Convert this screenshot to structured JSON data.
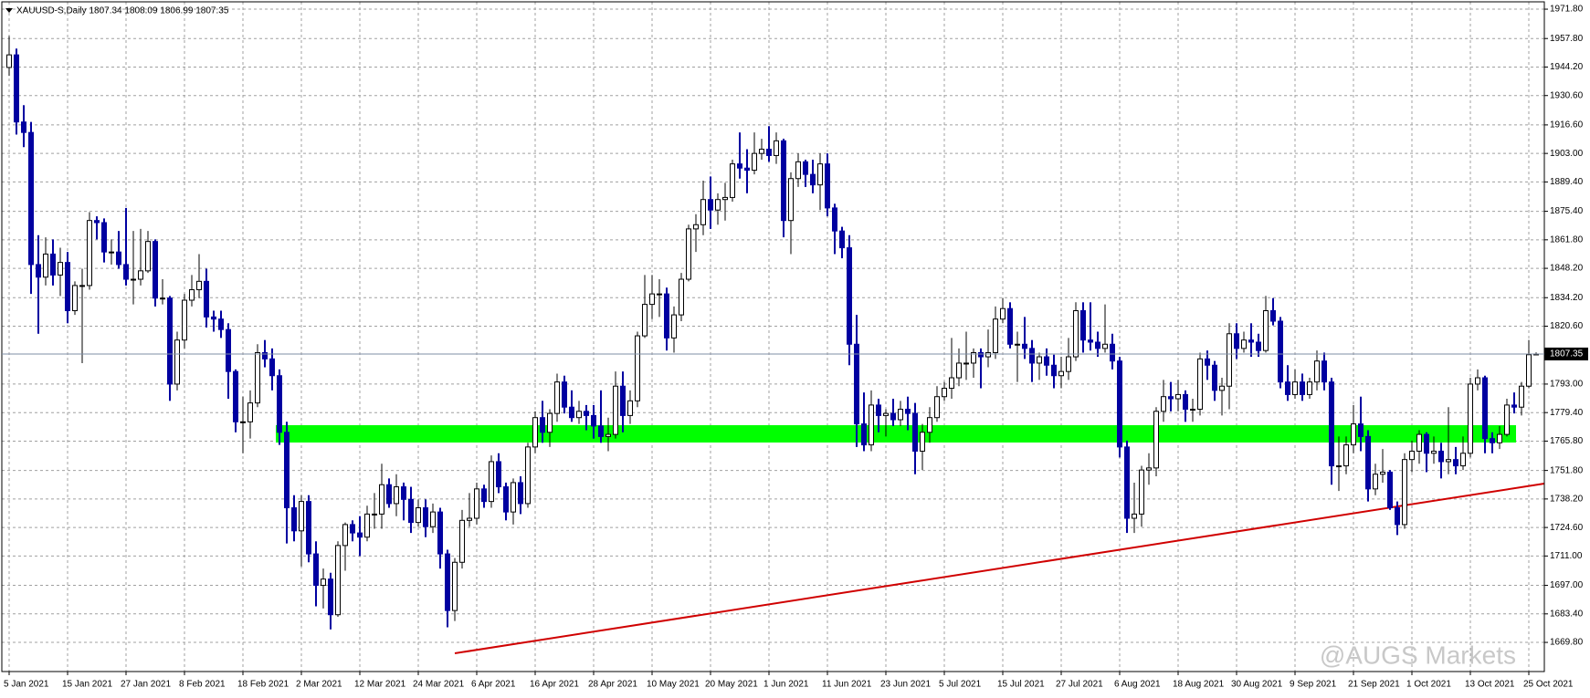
{
  "chart_data": {
    "type": "candlestick",
    "title": "XAUUSD-S,Daily  1807.34 1808.09 1806.99 1807.35",
    "watermark": "@AUGS Markets",
    "categories": [
      "5 Jan 2021",
      null,
      null,
      null,
      null,
      null,
      null,
      null,
      "15 Jan 2021",
      null,
      null,
      null,
      null,
      null,
      null,
      null,
      "27 Jan 2021",
      null,
      null,
      null,
      null,
      null,
      null,
      null,
      "8 Feb 2021",
      null,
      null,
      null,
      null,
      null,
      null,
      null,
      "18 Feb 2021",
      null,
      null,
      null,
      null,
      null,
      null,
      null,
      "2 Mar 2021",
      null,
      null,
      null,
      null,
      null,
      null,
      null,
      "12 Mar 2021",
      null,
      null,
      null,
      null,
      null,
      null,
      null,
      "24 Mar 2021",
      null,
      null,
      null,
      null,
      null,
      null,
      null,
      "6 Apr 2021",
      null,
      null,
      null,
      null,
      null,
      null,
      null,
      "16 Apr 2021",
      null,
      null,
      null,
      null,
      null,
      null,
      null,
      "28 Apr 2021",
      null,
      null,
      null,
      null,
      null,
      null,
      null,
      "10 May 2021",
      null,
      null,
      null,
      null,
      null,
      null,
      null,
      "20 May 2021",
      null,
      null,
      null,
      null,
      null,
      null,
      null,
      "1 Jun 2021",
      null,
      null,
      null,
      null,
      null,
      null,
      null,
      "11 Jun 2021",
      null,
      null,
      null,
      null,
      null,
      null,
      null,
      "23 Jun 2021",
      null,
      null,
      null,
      null,
      null,
      null,
      null,
      "5 Jul 2021",
      null,
      null,
      null,
      null,
      null,
      null,
      null,
      "15 Jul 2021",
      null,
      null,
      null,
      null,
      null,
      null,
      null,
      "27 Jul 2021",
      null,
      null,
      null,
      null,
      null,
      null,
      null,
      "6 Aug 2021",
      null,
      null,
      null,
      null,
      null,
      null,
      null,
      "18 Aug 2021",
      null,
      null,
      null,
      null,
      null,
      null,
      null,
      "30 Aug 2021",
      null,
      null,
      null,
      null,
      null,
      null,
      null,
      "9 Sep 2021",
      null,
      null,
      null,
      null,
      null,
      null,
      null,
      "21 Sep 2021",
      null,
      null,
      null,
      null,
      null,
      null,
      null,
      "1 Oct 2021",
      null,
      null,
      null,
      null,
      null,
      null,
      null,
      "13 Oct 2021",
      null,
      null,
      null,
      null,
      null,
      null,
      null,
      "25 Oct 2021",
      null
    ],
    "open": [
      1944,
      1950,
      1918,
      1913,
      1850,
      1844,
      1855,
      1845,
      1851,
      1828,
      1840,
      1840,
      1871,
      1870,
      1856,
      1856,
      1850,
      1843,
      1843,
      1847,
      1861,
      1834,
      1834,
      1793,
      1814,
      1833,
      1838,
      1842,
      1825,
      1824,
      1819,
      1799,
      1775,
      1775,
      1784,
      1808,
      1805,
      1797,
      1770,
      1734,
      1723,
      1737,
      1712,
      1697,
      1700,
      1683,
      1716,
      1726,
      1722,
      1720,
      1731,
      1731,
      1745,
      1736,
      1744,
      1738,
      1727,
      1734,
      1725,
      1732,
      1712,
      1685,
      1708,
      1728,
      1729,
      1743,
      1737,
      1756,
      1744,
      1732,
      1746,
      1736,
      1763,
      1777,
      1770,
      1779,
      1794,
      1782,
      1777,
      1780,
      1778,
      1773,
      1768,
      1769,
      1792,
      1778,
      1785,
      1816,
      1831,
      1836,
      1836,
      1815,
      1826,
      1843,
      1867,
      1869,
      1881,
      1876,
      1881,
      1882,
      1898,
      1896,
      1895,
      1903,
      1905,
      1902,
      1909,
      1871,
      1891,
      1899,
      1893,
      1888,
      1898,
      1877,
      1866,
      1858,
      1812,
      1774,
      1764,
      1783,
      1778,
      1779,
      1776,
      1781,
      1779,
      1761,
      1770,
      1777,
      1787,
      1791,
      1796,
      1803,
      1803,
      1808,
      1806,
      1808,
      1824,
      1829,
      1812,
      1812,
      1810,
      1803,
      1806,
      1802,
      1797,
      1799,
      1806,
      1828,
      1814,
      1813,
      1810,
      1812,
      1804,
      1763,
      1729,
      1731,
      1752,
      1753,
      1780,
      1787,
      1786,
      1788,
      1781,
      1781,
      1805,
      1802,
      1790,
      1792,
      1817,
      1810,
      1814,
      1813,
      1809,
      1828,
      1823,
      1794,
      1788,
      1794,
      1788,
      1794,
      1804,
      1794,
      1754,
      1754,
      1764,
      1774,
      1768,
      1743,
      1750,
      1751,
      1734,
      1726,
      1757,
      1761,
      1769,
      1760,
      1761,
      1756,
      1757,
      1754,
      1760,
      1793,
      1796,
      1767,
      1765,
      1769,
      1783,
      1782,
      1792,
      1807.34
    ],
    "high": [
      1959,
      1953,
      1926,
      1918,
      1864,
      1863,
      1862,
      1858,
      1856,
      1842,
      1848,
      1875,
      1873,
      1872,
      1862,
      1866,
      1877,
      1866,
      1867,
      1866,
      1862,
      1843,
      1835,
      1818,
      1836,
      1845,
      1855,
      1848,
      1828,
      1828,
      1822,
      1800,
      1787,
      1790,
      1812,
      1814,
      1810,
      1800,
      1775,
      1740,
      1740,
      1740,
      1718,
      1705,
      1703,
      1718,
      1727,
      1728,
      1730,
      1735,
      1741,
      1755,
      1748,
      1750,
      1746,
      1744,
      1738,
      1738,
      1736,
      1734,
      1714,
      1710,
      1733,
      1741,
      1746,
      1745,
      1759,
      1760,
      1746,
      1748,
      1749,
      1765,
      1780,
      1785,
      1781,
      1798,
      1797,
      1790,
      1785,
      1783,
      1783,
      1790,
      1777,
      1799,
      1799,
      1790,
      1818,
      1845,
      1845,
      1843,
      1839,
      1830,
      1846,
      1869,
      1874,
      1890,
      1892,
      1884,
      1889,
      1900,
      1913,
      1905,
      1913,
      1910,
      1916,
      1913,
      1910,
      1894,
      1903,
      1900,
      1900,
      1903,
      1903,
      1879,
      1868,
      1864,
      1826,
      1789,
      1790,
      1786,
      1781,
      1786,
      1785,
      1787,
      1784,
      1774,
      1782,
      1792,
      1794,
      1815,
      1810,
      1818,
      1810,
      1810,
      1819,
      1830,
      1834,
      1832,
      1818,
      1825,
      1814,
      1808,
      1810,
      1807,
      1806,
      1815,
      1832,
      1832,
      1832,
      1818,
      1831,
      1817,
      1806,
      1766,
      1746,
      1754,
      1760,
      1782,
      1795,
      1794,
      1795,
      1790,
      1786,
      1808,
      1809,
      1804,
      1796,
      1822,
      1822,
      1818,
      1822,
      1817,
      1835,
      1834,
      1825,
      1802,
      1800,
      1798,
      1796,
      1809,
      1808,
      1796,
      1768,
      1768,
      1783,
      1787,
      1771,
      1755,
      1762,
      1752,
      1737,
      1760,
      1766,
      1771,
      1770,
      1768,
      1765,
      1782,
      1763,
      1768,
      1796,
      1800,
      1797,
      1770,
      1773,
      1786,
      1789,
      1794,
      1814,
      1808.09
    ],
    "low": [
      1940,
      1912,
      1906,
      1836,
      1817,
      1840,
      1840,
      1835,
      1822,
      1826,
      1803,
      1838,
      1862,
      1851,
      1850,
      1848,
      1840,
      1831,
      1840,
      1846,
      1830,
      1831,
      1785,
      1790,
      1810,
      1830,
      1834,
      1820,
      1818,
      1815,
      1786,
      1770,
      1760,
      1767,
      1782,
      1801,
      1790,
      1764,
      1717,
      1718,
      1706,
      1708,
      1687,
      1686,
      1676,
      1682,
      1704,
      1718,
      1711,
      1718,
      1724,
      1724,
      1734,
      1730,
      1728,
      1722,
      1725,
      1720,
      1722,
      1705,
      1677,
      1680,
      1705,
      1725,
      1726,
      1734,
      1734,
      1741,
      1728,
      1726,
      1731,
      1734,
      1760,
      1765,
      1763,
      1775,
      1779,
      1775,
      1774,
      1771,
      1767,
      1765,
      1761,
      1767,
      1770,
      1774,
      1782,
      1815,
      1824,
      1825,
      1809,
      1808,
      1823,
      1842,
      1856,
      1864,
      1867,
      1869,
      1871,
      1880,
      1891,
      1884,
      1893,
      1900,
      1899,
      1898,
      1863,
      1855,
      1887,
      1887,
      1884,
      1876,
      1873,
      1855,
      1853,
      1802,
      1763,
      1761,
      1761,
      1770,
      1768,
      1773,
      1773,
      1771,
      1750,
      1752,
      1765,
      1775,
      1785,
      1786,
      1792,
      1795,
      1796,
      1791,
      1801,
      1805,
      1822,
      1810,
      1794,
      1805,
      1794,
      1795,
      1797,
      1791,
      1791,
      1795,
      1804,
      1808,
      1809,
      1806,
      1808,
      1800,
      1758,
      1722,
      1722,
      1725,
      1745,
      1749,
      1775,
      1780,
      1780,
      1775,
      1775,
      1778,
      1795,
      1785,
      1778,
      1781,
      1805,
      1808,
      1806,
      1806,
      1808,
      1821,
      1791,
      1785,
      1786,
      1785,
      1786,
      1790,
      1790,
      1745,
      1742,
      1750,
      1760,
      1761,
      1737,
      1740,
      1746,
      1733,
      1721,
      1724,
      1751,
      1755,
      1751,
      1755,
      1748,
      1750,
      1750,
      1752,
      1758,
      1790,
      1760,
      1760,
      1762,
      1768,
      1779,
      1778,
      1791,
      1806.99
    ],
    "close": [
      1950,
      1918,
      1913,
      1850,
      1844,
      1855,
      1845,
      1851,
      1828,
      1840,
      1840,
      1871,
      1870,
      1856,
      1856,
      1850,
      1843,
      1843,
      1847,
      1861,
      1834,
      1834,
      1793,
      1814,
      1833,
      1838,
      1842,
      1825,
      1824,
      1819,
      1799,
      1775,
      1775,
      1784,
      1808,
      1805,
      1797,
      1770,
      1734,
      1723,
      1737,
      1712,
      1697,
      1700,
      1683,
      1716,
      1726,
      1722,
      1720,
      1731,
      1731,
      1745,
      1736,
      1744,
      1738,
      1727,
      1734,
      1725,
      1732,
      1712,
      1685,
      1708,
      1728,
      1729,
      1743,
      1737,
      1756,
      1744,
      1732,
      1746,
      1736,
      1763,
      1777,
      1770,
      1779,
      1794,
      1782,
      1777,
      1780,
      1778,
      1773,
      1768,
      1769,
      1792,
      1778,
      1785,
      1816,
      1831,
      1836,
      1836,
      1815,
      1826,
      1843,
      1867,
      1869,
      1881,
      1876,
      1881,
      1882,
      1898,
      1896,
      1895,
      1903,
      1905,
      1902,
      1909,
      1871,
      1891,
      1899,
      1893,
      1888,
      1898,
      1877,
      1866,
      1858,
      1812,
      1774,
      1764,
      1783,
      1778,
      1779,
      1776,
      1781,
      1779,
      1761,
      1770,
      1777,
      1787,
      1791,
      1796,
      1803,
      1803,
      1808,
      1806,
      1808,
      1824,
      1829,
      1812,
      1812,
      1810,
      1803,
      1806,
      1802,
      1797,
      1799,
      1806,
      1828,
      1814,
      1813,
      1810,
      1812,
      1804,
      1763,
      1729,
      1731,
      1752,
      1753,
      1780,
      1787,
      1786,
      1788,
      1781,
      1781,
      1805,
      1802,
      1790,
      1792,
      1817,
      1810,
      1814,
      1813,
      1809,
      1828,
      1823,
      1794,
      1788,
      1794,
      1788,
      1794,
      1804,
      1794,
      1754,
      1754,
      1764,
      1774,
      1768,
      1743,
      1750,
      1751,
      1734,
      1726,
      1757,
      1761,
      1769,
      1760,
      1761,
      1756,
      1757,
      1754,
      1760,
      1793,
      1796,
      1767,
      1765,
      1769,
      1783,
      1782,
      1792,
      1807,
      1807.35
    ],
    "up_color": "#ffffff",
    "down_color": "#0000a0",
    "up_line": "#000000",
    "ylim": [
      1655.9,
      1975.3
    ],
    "yticks": [
      {
        "value": 1971.8,
        "label": "1971.80"
      },
      {
        "value": 1957.8,
        "label": "1957.80"
      },
      {
        "value": 1944.2,
        "label": "1944.20"
      },
      {
        "value": 1930.6,
        "label": "1930.60"
      },
      {
        "value": 1916.6,
        "label": "1916.60"
      },
      {
        "value": 1903,
        "label": "1903.00"
      },
      {
        "value": 1889.4,
        "label": "1889.40"
      },
      {
        "value": 1875.4,
        "label": "1875.40"
      },
      {
        "value": 1861.8,
        "label": "1861.80"
      },
      {
        "value": 1848.2,
        "label": "1848.20"
      },
      {
        "value": 1834.2,
        "label": "1834.20"
      },
      {
        "value": 1820.6,
        "label": "1820.60"
      },
      {
        "value": 1793,
        "label": "1793.00"
      },
      {
        "value": 1779.4,
        "label": "1779.40"
      },
      {
        "value": 1765.8,
        "label": "1765.80"
      },
      {
        "value": 1751.8,
        "label": "1751.80"
      },
      {
        "value": 1738.2,
        "label": "1738.20"
      },
      {
        "value": 1724.6,
        "label": "1724.60"
      },
      {
        "value": 1711,
        "label": "1711.00"
      },
      {
        "value": 1697,
        "label": "1697.00"
      },
      {
        "value": 1683.4,
        "label": "1683.40"
      },
      {
        "value": 1669.8,
        "label": "1669.80"
      }
    ],
    "current_price": 1807.35,
    "grid": true
  }
}
